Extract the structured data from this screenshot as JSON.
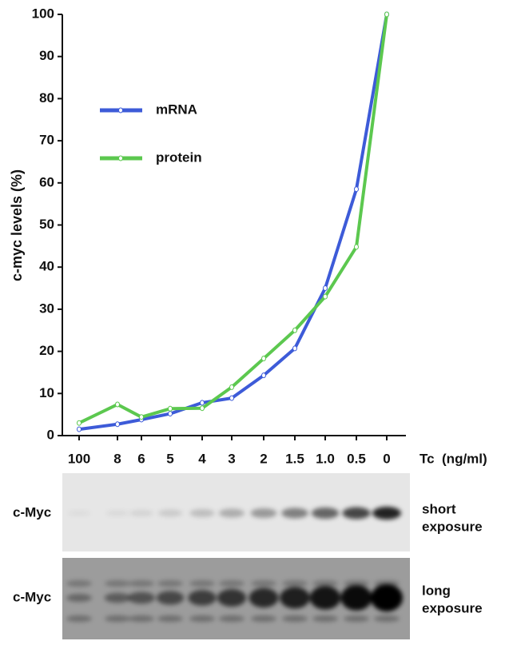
{
  "chart_data": {
    "type": "line",
    "y_label": "c-myc levels (%)",
    "x_label": "Tc  (ng/ml)",
    "categories": [
      "100",
      "8",
      "6",
      "5",
      "4",
      "3",
      "2",
      "1.5",
      "1.0",
      "0.5",
      "0"
    ],
    "series": [
      {
        "name": "mRNA",
        "color": "#3d5bd8",
        "values": [
          1.5,
          2.7,
          3.8,
          5.2,
          7.8,
          8.9,
          14.3,
          20.7,
          35,
          58.5,
          100
        ]
      },
      {
        "name": "protein",
        "color": "#5cc84f",
        "values": [
          3,
          7.4,
          4.4,
          6.4,
          6.5,
          11.5,
          18.3,
          25,
          33,
          44.8,
          100
        ]
      }
    ],
    "ylim": [
      0,
      100
    ],
    "yticks": [
      0,
      10,
      20,
      30,
      40,
      50,
      60,
      70,
      80,
      90,
      100
    ],
    "grid": false
  },
  "blots": [
    {
      "label": "c-Myc",
      "exposure": [
        "short",
        "exposure"
      ]
    },
    {
      "label": "c-Myc",
      "exposure": [
        "long",
        "exposure"
      ]
    }
  ]
}
